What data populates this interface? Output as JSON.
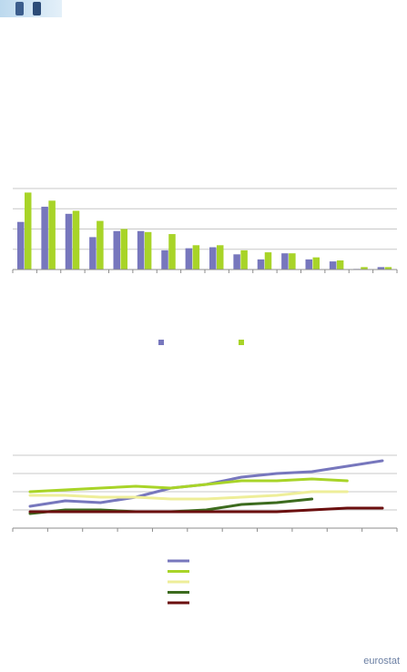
{
  "header": {
    "logo_icon": "eurostat-banner-icon"
  },
  "colors": {
    "blue": "#7777bd",
    "green": "#a8d428",
    "lightyellow": "#eeee99",
    "darkgreen": "#3c6b1e",
    "darkred": "#6b0f0f",
    "axis": "#8c8c8c",
    "grid": "#c8c8c8"
  },
  "chart_data": [
    {
      "type": "bar",
      "title": "",
      "xlabel": "",
      "ylabel": "",
      "ylim": [
        0,
        40
      ],
      "grid": true,
      "legend_position": "bottom",
      "categories": [
        "",
        "",
        "",
        "",
        "",
        "",
        "",
        "",
        "",
        "",
        "",
        "",
        "",
        "",
        "",
        ""
      ],
      "series": [
        {
          "color": "#7777bd",
          "values": [
            23.5,
            31,
            27.5,
            16,
            19,
            19,
            9.5,
            10.5,
            11,
            7.5,
            5,
            8,
            5,
            4,
            0.3,
            1.2
          ]
        },
        {
          "color": "#a8d428",
          "values": [
            38,
            34,
            29,
            24,
            20,
            18.5,
            17.5,
            12,
            12,
            9.5,
            8.5,
            8,
            6,
            4.5,
            1.2,
            1.2
          ]
        }
      ]
    },
    {
      "type": "line",
      "title": "",
      "xlabel": "",
      "ylabel": "",
      "ylim": [
        0,
        40
      ],
      "grid": true,
      "legend_position": "bottom",
      "x": [
        "",
        "",
        "",
        "",
        "",
        "",
        "",
        "",
        "",
        "",
        ""
      ],
      "series": [
        {
          "color": "#7777bd",
          "values": [
            12,
            15,
            14,
            17,
            22,
            24,
            28,
            30,
            31,
            34,
            37
          ]
        },
        {
          "color": "#a8d428",
          "values": [
            20,
            21,
            22,
            23,
            22,
            24,
            26,
            26,
            27,
            26,
            null
          ]
        },
        {
          "color": "#eeee99",
          "values": [
            18,
            18,
            17,
            17,
            16,
            16,
            17,
            18,
            20,
            20,
            null
          ]
        },
        {
          "color": "#3c6b1e",
          "values": [
            8,
            10,
            10,
            9,
            9,
            10,
            13,
            14,
            16,
            null,
            null
          ]
        },
        {
          "color": "#6b0f0f",
          "values": [
            9,
            9,
            9,
            9,
            9,
            9,
            9,
            9,
            10,
            11,
            11
          ]
        }
      ]
    }
  ],
  "footer": {
    "brand": "eurostat"
  }
}
